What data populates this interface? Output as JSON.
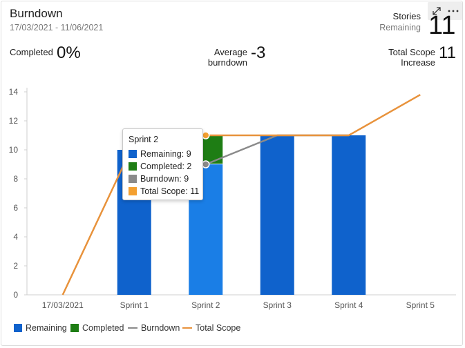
{
  "header": {
    "title": "Burndown",
    "date_range": "17/03/2021 - 11/06/2021",
    "stories_label": "Stories",
    "remaining_label": "Remaining",
    "stories_remaining_value": "11",
    "toolbar": {
      "expand_icon": "expand-icon",
      "more_icon": "more-options-icon"
    }
  },
  "metrics": {
    "completed_label": "Completed",
    "completed_value": "0%",
    "avg_burndown_label_line1": "Average",
    "avg_burndown_label_line2": "burndown",
    "avg_burndown_value": "-3",
    "total_scope_label_line1": "Total Scope",
    "total_scope_label_line2": "Increase",
    "total_scope_value": "11"
  },
  "chart_data": {
    "type": "bar",
    "categories": [
      "17/03/2021",
      "Sprint 1",
      "Sprint 2",
      "Sprint 3",
      "Sprint 4",
      "Sprint 5"
    ],
    "ylim": [
      0,
      14
    ],
    "yticks": [
      0,
      2,
      4,
      6,
      8,
      10,
      12,
      14
    ],
    "series": [
      {
        "name": "Remaining",
        "kind": "bar",
        "color": "#0f62cc",
        "values": [
          null,
          10,
          9,
          11,
          11,
          null
        ]
      },
      {
        "name": "Completed",
        "kind": "bar",
        "color": "#1e7d14",
        "values": [
          null,
          null,
          2,
          null,
          null,
          null
        ]
      },
      {
        "name": "Burndown",
        "kind": "line",
        "color": "#8a8a8a",
        "values": [
          null,
          null,
          9,
          11,
          11,
          null
        ]
      },
      {
        "name": "Total Scope",
        "kind": "line",
        "color": "#e8923b",
        "values": [
          0,
          10.5,
          11,
          11,
          11,
          13.8
        ]
      }
    ],
    "legend_position": "bottom-left",
    "grid": false
  },
  "colors": {
    "remaining": "#0f62cc",
    "remaining_highlight": "#1a7ee6",
    "completed": "#1e7d14",
    "burndown": "#8a8a8a",
    "total_scope": "#e8923b",
    "total_scope_marker": "#f4a030"
  },
  "tooltip": {
    "title": "Sprint 2",
    "rows": [
      {
        "text": "Remaining: 9",
        "color": "#0f62cc"
      },
      {
        "text": "Completed: 2",
        "color": "#1e7d14"
      },
      {
        "text": "Burndown: 9",
        "color": "#8a8a8a"
      },
      {
        "text": "Total Scope: 11",
        "color": "#f4a030"
      }
    ]
  },
  "legend": {
    "items": [
      {
        "label": "Remaining",
        "shape": "box",
        "color": "#0f62cc"
      },
      {
        "label": "Completed",
        "shape": "box",
        "color": "#1e7d14"
      },
      {
        "label": "Burndown",
        "shape": "line",
        "color": "#8a8a8a"
      },
      {
        "label": "Total Scope",
        "shape": "line",
        "color": "#e8923b"
      }
    ]
  }
}
